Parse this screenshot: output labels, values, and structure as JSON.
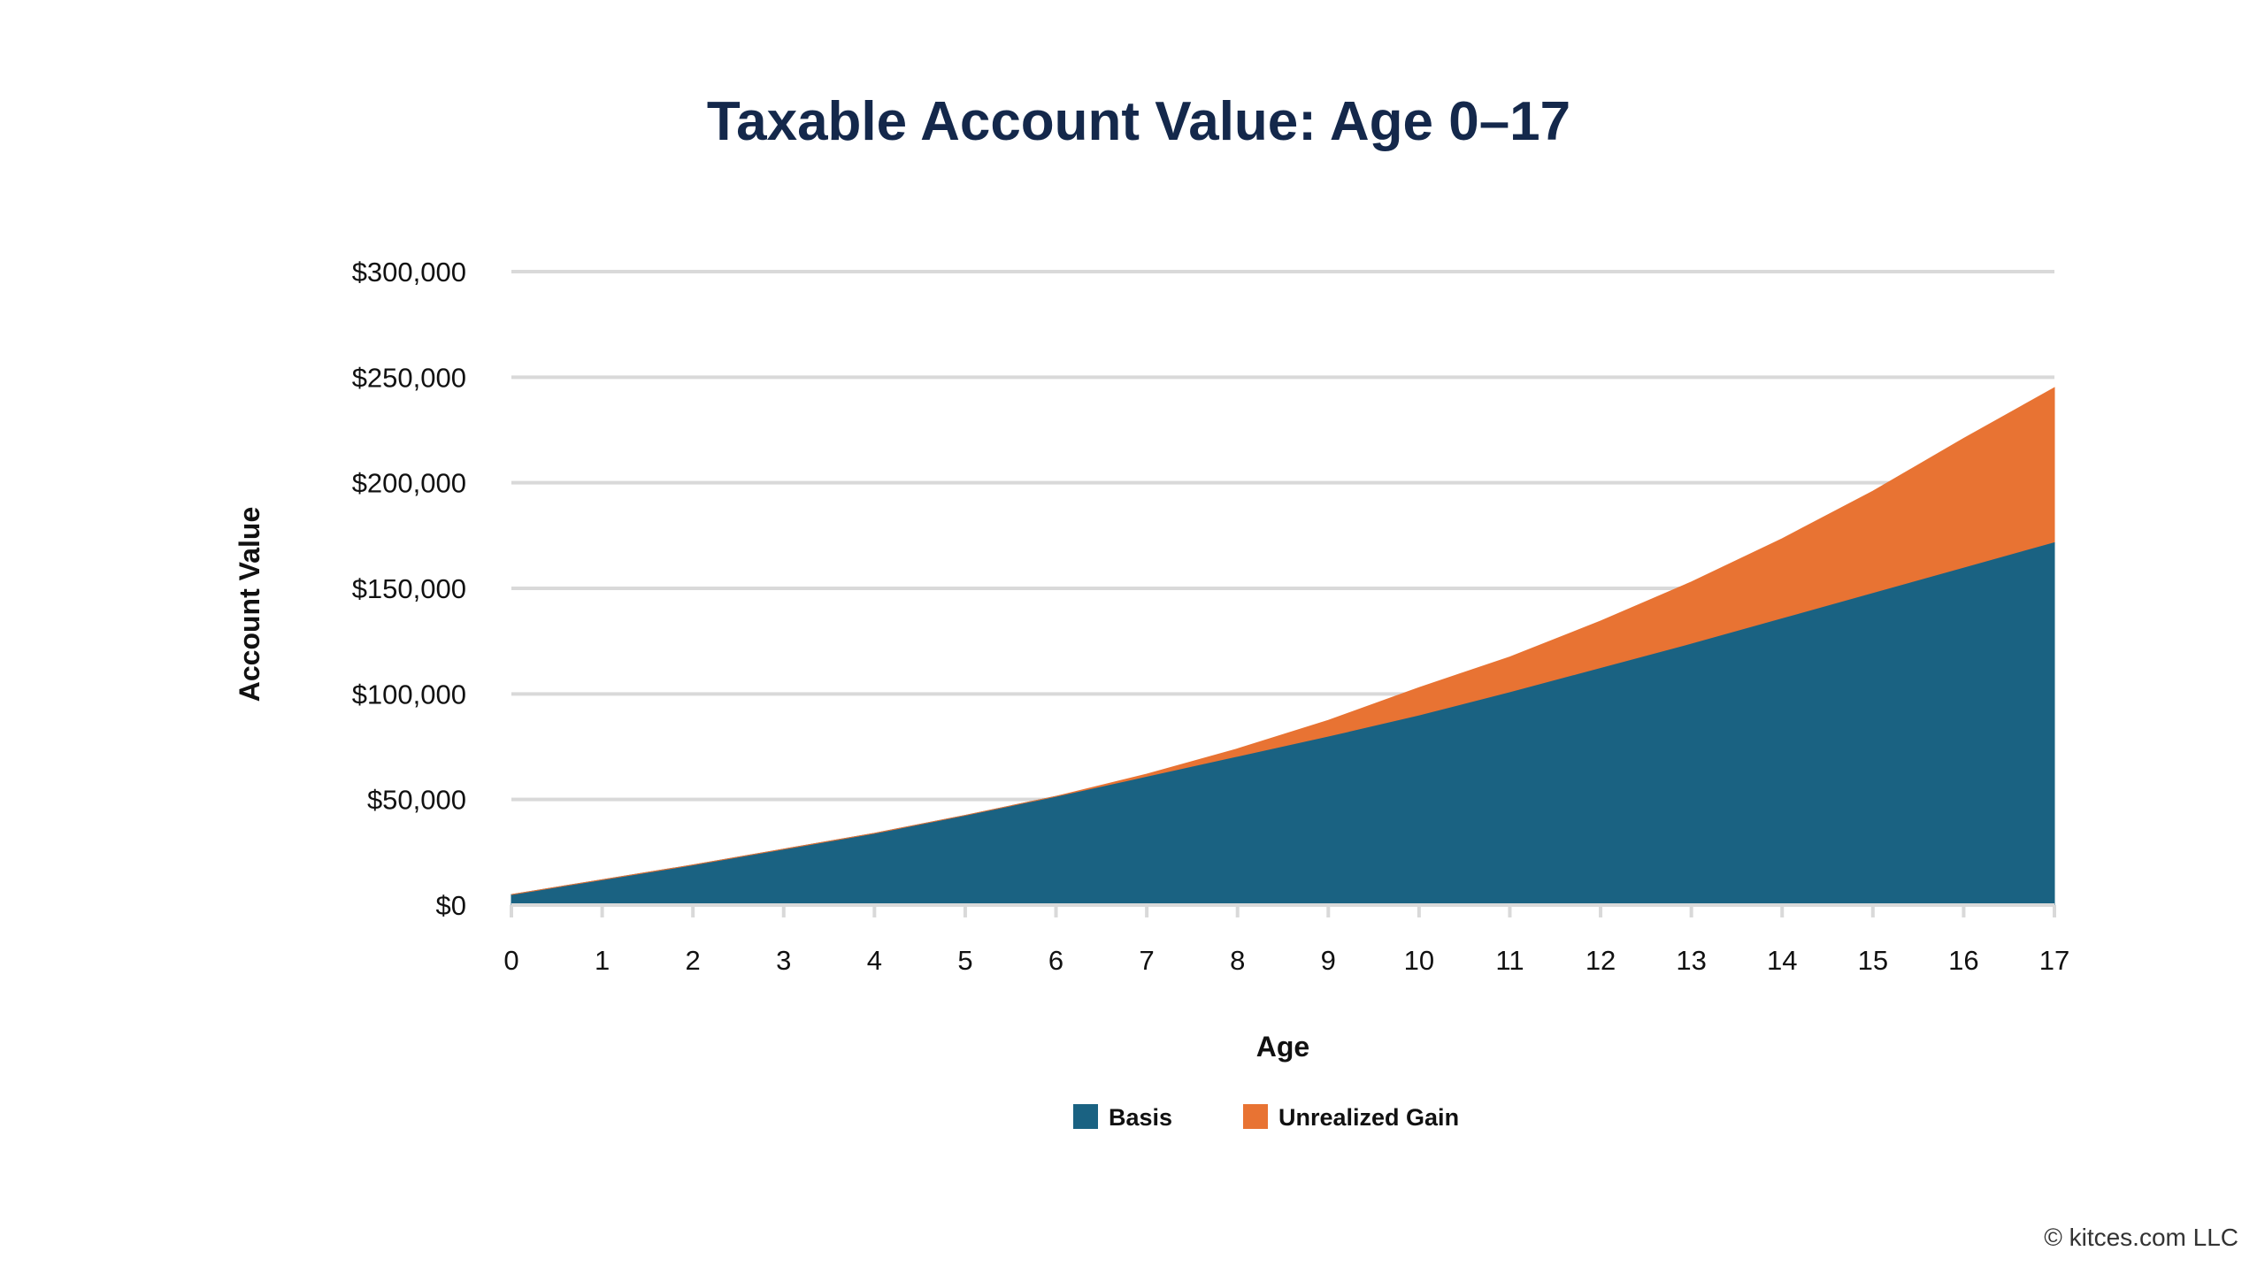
{
  "chart_data": {
    "type": "area",
    "stacked": true,
    "title": "Taxable Account Value: Age 0–17",
    "xlabel": "Age",
    "ylabel": "Account Value",
    "x": [
      0,
      1,
      2,
      3,
      4,
      5,
      6,
      7,
      8,
      9,
      10,
      11,
      12,
      13,
      14,
      15,
      16,
      17
    ],
    "x_tick_labels": [
      "0",
      "1",
      "2",
      "3",
      "4",
      "5",
      "6",
      "7",
      "8",
      "9",
      "10",
      "11",
      "12",
      "13",
      "14",
      "15",
      "16",
      "17"
    ],
    "ylim": [
      0,
      300000
    ],
    "y_ticks": [
      0,
      50000,
      100000,
      150000,
      200000,
      250000,
      300000
    ],
    "y_tick_labels": [
      "$0",
      "$50,000",
      "$100,000",
      "$150,000",
      "$200,000",
      "$250,000",
      "$300,000"
    ],
    "grid": "horizontal",
    "legend_position": "bottom",
    "series": [
      {
        "name": "Basis",
        "color": "#1a6282",
        "values": [
          5000,
          12000,
          19000,
          26500,
          34000,
          42500,
          51500,
          61000,
          70500,
          80000,
          90000,
          101000,
          112500,
          124000,
          136000,
          148000,
          160000,
          172000
        ]
      },
      {
        "name": "Unrealized Gain",
        "color": "#e87333",
        "values": [
          0,
          0,
          0,
          0,
          0,
          0,
          0,
          1000,
          3500,
          7500,
          13000,
          16500,
          22000,
          29000,
          37500,
          48000,
          61000,
          73000
        ]
      }
    ]
  },
  "credit": "© kitces.com LLC"
}
